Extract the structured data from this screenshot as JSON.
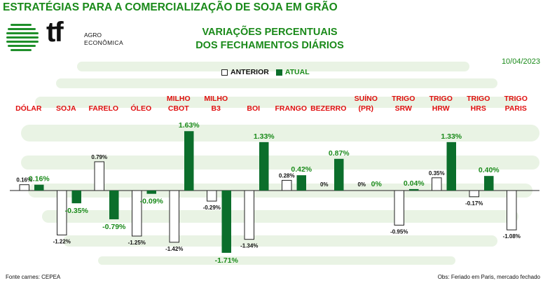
{
  "header": {
    "title": "ESTRATÉGIAS PARA A COMERCIALIZAÇÃO DE SOJA EM GRÃO",
    "logo_mark": "tf",
    "logo_line1": "AGRO",
    "logo_line2": "ECONÔMICA",
    "chart_title_line1": "VARIAÇÕES PERCENTUAIS",
    "chart_title_line2": "DOS FECHAMENTOS DIÁRIOS",
    "date": "10/04/2023"
  },
  "legend": {
    "previous": "ANTERIOR",
    "current": "ATUAL"
  },
  "colors": {
    "title_green": "#1a8a1a",
    "current_bar": "#0b6e2b",
    "previous_bar": "#ffffff",
    "category_label": "#e01010",
    "background_stripes": "#e9f3e4"
  },
  "chart_data": {
    "type": "bar",
    "title": "VARIAÇÕES PERCENTUAIS DOS FECHAMENTOS DIÁRIOS",
    "categories": [
      [
        "DÓLAR"
      ],
      [
        "SOJA"
      ],
      [
        "FARELO"
      ],
      [
        "ÓLEO"
      ],
      [
        "MILHO",
        "CBOT"
      ],
      [
        "MILHO",
        "B3"
      ],
      [
        "BOI"
      ],
      [
        "FRANGO"
      ],
      [
        "BEZERRO"
      ],
      [
        "SUÍNO",
        "(PR)"
      ],
      [
        "TRIGO",
        "SRW"
      ],
      [
        "TRIGO",
        "HRW"
      ],
      [
        "TRIGO",
        "HRS"
      ],
      [
        "TRIGO",
        "PARIS"
      ]
    ],
    "series": [
      {
        "name": "ANTERIOR",
        "values": [
          0.16,
          -1.22,
          0.79,
          -1.25,
          -1.42,
          -0.29,
          -1.34,
          0.28,
          0,
          0,
          -0.95,
          0.35,
          -0.17,
          -1.08
        ],
        "labels": [
          "0.16%",
          "-1.22%",
          "0.79%",
          "-1.25%",
          "-1.42%",
          "-0.29%",
          "-1.34%",
          "0.28%",
          "0%",
          "0%",
          "-0.95%",
          "0.35%",
          "-0.17%",
          "-1.08%"
        ]
      },
      {
        "name": "ATUAL",
        "values": [
          0.16,
          -0.35,
          -0.79,
          -0.09,
          1.63,
          -1.71,
          1.33,
          0.42,
          0.87,
          0,
          0.04,
          1.33,
          0.4,
          null
        ],
        "labels": [
          "0.16%",
          "-0.35%",
          "-0.79%",
          "-0.09%",
          "1.63%",
          "-1.71%",
          "1.33%",
          "0.42%",
          "0.87%",
          "0%",
          "0.04%",
          "1.33%",
          "0.40%",
          ""
        ]
      }
    ],
    "legend": "top-center",
    "grid": false
  },
  "footer": {
    "source": "Fonte carnes: CEPEA",
    "note": "Obs: Feriado em Paris, mercado fechado"
  }
}
